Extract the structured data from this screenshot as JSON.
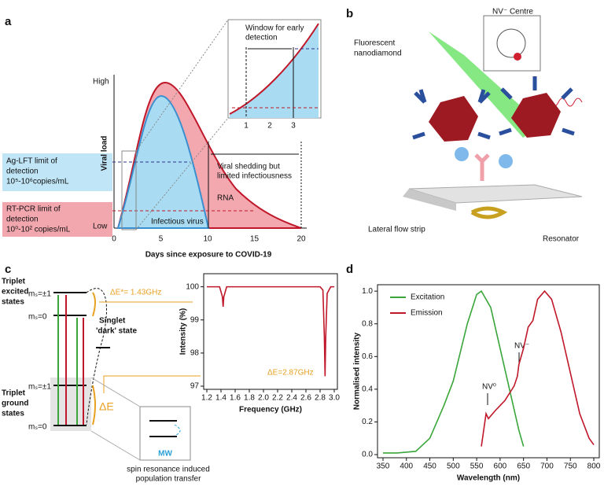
{
  "panels": {
    "a": {
      "label": "a",
      "y_axis_label": "Viral load",
      "y_high": "High",
      "y_low": "Low",
      "x_axis_label": "Days since exposure to COVID-19",
      "xticks": [
        0,
        5,
        10,
        15,
        20
      ],
      "inset_title": [
        "Window for early",
        "detection"
      ],
      "inset_xticks": [
        1,
        2,
        3
      ],
      "ag_box": [
        "Ag-LFT limit of",
        "detection",
        "10⁵-10⁶copies/mL"
      ],
      "pcr_box": [
        "RT-PCR limit of",
        "detection",
        "10⁰-10² copies/mL"
      ],
      "shedding": [
        "Viral shedding but",
        "limited infectiousness"
      ],
      "rna": "RNA",
      "infectious": "Infectious virus"
    },
    "b": {
      "label": "b",
      "nv_centre": "NV⁻ Centre",
      "nanodiamond": [
        "Fluorescent",
        "nanodiamond"
      ],
      "strip": "Lateral flow strip",
      "resonator": "Resonator"
    },
    "c": {
      "label": "c",
      "excited": [
        "Triplet",
        "excited",
        "states"
      ],
      "ms_pm1_top": "mₛ=±1",
      "ms_0_top": "mₛ=0",
      "singlet": [
        "Singlet",
        "'dark' state"
      ],
      "ground": [
        "Triplet",
        "ground",
        "states"
      ],
      "ms_pm1_bottom": "mₛ=±1",
      "ms_0_bottom": "mₛ=0",
      "delta_e": "ΔE",
      "delta_e_star": "ΔE*= 1.43GHz",
      "delta_e_gs": "ΔE=2.87GHz",
      "mw": "MW",
      "caption": [
        "spin resonance induced",
        "population transfer"
      ]
    },
    "d": {
      "label": "d",
      "nv0": "NV⁰",
      "nvm": "NV⁻"
    }
  },
  "chart_data": [
    {
      "type": "line",
      "x_label": "Frequency (GHz)",
      "y_label": "Intensity (%)",
      "xlim": [
        1.2,
        3.0
      ],
      "xticks": [
        1.2,
        1.4,
        1.6,
        1.8,
        {
          "value": 2.0,
          "label": "2.0"
        },
        2.2,
        2.4,
        2.6,
        2.8,
        {
          "value": 3.0,
          "label": "3.0"
        }
      ],
      "ylim": [
        97,
        100.3
      ],
      "yticks": [
        97,
        98,
        99,
        100
      ],
      "series": [
        {
          "color": "#c0182a",
          "x": [
            1.2,
            1.38,
            1.42,
            1.43,
            1.44,
            1.48,
            2.8,
            2.84,
            2.86,
            2.87,
            2.88,
            2.9,
            2.95,
            3.0
          ],
          "values": [
            100,
            100,
            99.7,
            99.4,
            99.7,
            100,
            100,
            99.9,
            98.5,
            97.3,
            98.5,
            99.8,
            100,
            100
          ]
        }
      ]
    },
    {
      "type": "line",
      "x_label": "Wavelength (nm)",
      "y_label": "Normalised intensity",
      "xlim": [
        345,
        805
      ],
      "xticks": [
        350,
        400,
        450,
        500,
        550,
        600,
        650,
        700,
        750,
        800
      ],
      "ylim": [
        0,
        1.02
      ],
      "yticks": [
        {
          "value": 0,
          "label": "0.0"
        },
        0.2,
        0.4,
        0.6,
        0.8,
        {
          "value": 1.0,
          "label": "1.0"
        }
      ],
      "series": [
        {
          "name": "Excitation",
          "color": "#3aa53a",
          "x": [
            350,
            380,
            420,
            450,
            480,
            500,
            530,
            550,
            560,
            580,
            600,
            620,
            640,
            650
          ],
          "values": [
            0.01,
            0.01,
            0.02,
            0.1,
            0.3,
            0.45,
            0.8,
            0.98,
            1.0,
            0.9,
            0.65,
            0.4,
            0.15,
            0.05
          ]
        },
        {
          "name": "Emission",
          "color": "#c0182a",
          "x": [
            560,
            570,
            575,
            590,
            610,
            630,
            637,
            640,
            650,
            660,
            670,
            680,
            695,
            710,
            730,
            750,
            770,
            790,
            800
          ],
          "values": [
            0.05,
            0.25,
            0.22,
            0.27,
            0.33,
            0.42,
            0.48,
            0.55,
            0.65,
            0.78,
            0.82,
            0.95,
            1.0,
            0.95,
            0.75,
            0.5,
            0.25,
            0.1,
            0.06
          ]
        }
      ]
    }
  ]
}
